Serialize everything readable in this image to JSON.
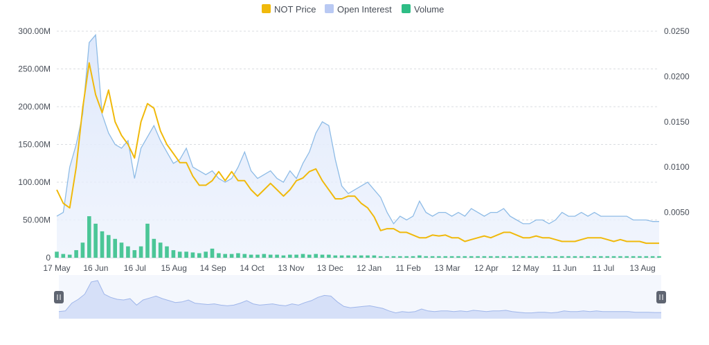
{
  "legend": [
    {
      "label": "NOT Price",
      "color": "#f0b90b"
    },
    {
      "label": "Open Interest",
      "color": "#b9c9f3"
    },
    {
      "label": "Volume",
      "color": "#2ebd85"
    }
  ],
  "chart_data": {
    "type": "line",
    "x_ticks": [
      "17 May",
      "16 Jun",
      "16 Jul",
      "15 Aug",
      "14 Sep",
      "14 Oct",
      "13 Nov",
      "13 Dec",
      "12 Jan",
      "11 Feb",
      "13 Mar",
      "12 Apr",
      "12 May",
      "11 Jun",
      "11 Jul",
      "13 Aug"
    ],
    "y_left_ticks": [
      "0",
      "50.00M",
      "100.00M",
      "150.00M",
      "200.00M",
      "250.00M",
      "300.00M"
    ],
    "y_right_ticks": [
      "0.0050",
      "0.0100",
      "0.0150",
      "0.0200",
      "0.0250"
    ],
    "y_left_range": [
      0,
      300000000
    ],
    "y_right_range": [
      0,
      0.025
    ],
    "grid": true,
    "legend_position": "top-center",
    "x_index": [
      0,
      5,
      10,
      15,
      20,
      25,
      30,
      35,
      40,
      45,
      50,
      55,
      60,
      65,
      70,
      75,
      80,
      85,
      90,
      95,
      100,
      105,
      110,
      115,
      120,
      125,
      130,
      135,
      140,
      145,
      150,
      155,
      160,
      165,
      170,
      175,
      180,
      185,
      190,
      195,
      200,
      205,
      210,
      215,
      220,
      225,
      230,
      235,
      240,
      245,
      250,
      255,
      260,
      265,
      270,
      275,
      280,
      285,
      290,
      295,
      300,
      305,
      310,
      315,
      320,
      325,
      330,
      335,
      340,
      345,
      350,
      355,
      360,
      365,
      370,
      375,
      380,
      385,
      390,
      395,
      400,
      405,
      410,
      415,
      420,
      425,
      430,
      435,
      440,
      445,
      450,
      455,
      460,
      465
    ],
    "series": [
      {
        "name": "Open Interest",
        "axis": "left",
        "values": [
          55,
          60,
          120,
          150,
          190,
          285,
          295,
          190,
          165,
          150,
          145,
          155,
          105,
          145,
          160,
          175,
          155,
          140,
          125,
          130,
          145,
          120,
          115,
          110,
          115,
          105,
          100,
          105,
          120,
          140,
          115,
          105,
          110,
          115,
          105,
          100,
          115,
          105,
          125,
          140,
          165,
          180,
          175,
          130,
          95,
          85,
          90,
          95,
          100,
          90,
          80,
          60,
          45,
          55,
          50,
          55,
          75,
          60,
          55,
          60,
          60,
          55,
          60,
          55,
          65,
          60,
          55,
          60,
          60,
          65,
          55,
          50,
          45,
          45,
          50,
          50,
          45,
          50,
          60,
          55,
          55,
          60,
          55,
          60,
          55,
          55,
          55,
          55,
          55,
          50,
          50,
          50,
          48,
          48
        ]
      },
      {
        "name": "NOT Price",
        "axis": "right",
        "values": [
          0.0075,
          0.006,
          0.0055,
          0.01,
          0.0165,
          0.0215,
          0.018,
          0.016,
          0.0185,
          0.015,
          0.0135,
          0.0125,
          0.011,
          0.015,
          0.017,
          0.0165,
          0.014,
          0.0125,
          0.0115,
          0.0105,
          0.0105,
          0.009,
          0.008,
          0.008,
          0.0085,
          0.0095,
          0.0085,
          0.0095,
          0.0085,
          0.0085,
          0.0075,
          0.0068,
          0.0075,
          0.0082,
          0.0075,
          0.0068,
          0.0075,
          0.0085,
          0.0088,
          0.0095,
          0.0098,
          0.0085,
          0.0075,
          0.0065,
          0.0065,
          0.0068,
          0.0068,
          0.006,
          0.0055,
          0.0045,
          0.003,
          0.0032,
          0.0032,
          0.0028,
          0.0028,
          0.0025,
          0.0022,
          0.0022,
          0.0025,
          0.0024,
          0.0025,
          0.0022,
          0.0022,
          0.0018,
          0.002,
          0.0022,
          0.0024,
          0.0022,
          0.0025,
          0.0028,
          0.0028,
          0.0025,
          0.0022,
          0.0022,
          0.0024,
          0.0022,
          0.0022,
          0.002,
          0.0018,
          0.0018,
          0.0018,
          0.002,
          0.0022,
          0.0022,
          0.0022,
          0.002,
          0.0018,
          0.002,
          0.0018,
          0.0018,
          0.0018,
          0.0016,
          0.0016,
          0.0016
        ]
      },
      {
        "name": "Volume",
        "axis": "left",
        "values": [
          8,
          5,
          4,
          10,
          20,
          55,
          45,
          35,
          30,
          25,
          20,
          15,
          10,
          15,
          45,
          25,
          20,
          15,
          10,
          8,
          8,
          7,
          6,
          8,
          12,
          6,
          5,
          5,
          6,
          5,
          4,
          4,
          5,
          4,
          4,
          3,
          4,
          4,
          5,
          4,
          5,
          4,
          4,
          3,
          3,
          3,
          3,
          3,
          3,
          3,
          2,
          2,
          2,
          2,
          2,
          2,
          3,
          2,
          2,
          2,
          2,
          2,
          2,
          2,
          2,
          2,
          2,
          2,
          2,
          2,
          2,
          2,
          2,
          2,
          2,
          2,
          2,
          2,
          2,
          2,
          2,
          2,
          2,
          2,
          2,
          2,
          2,
          2,
          2,
          2,
          2,
          2,
          2,
          2
        ]
      }
    ]
  }
}
